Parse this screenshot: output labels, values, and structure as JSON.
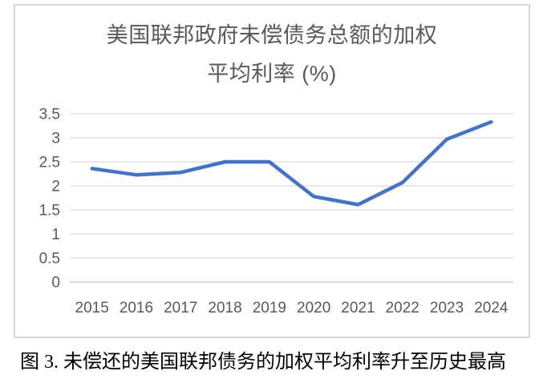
{
  "chart": {
    "title_line1": "美国联邦政府未偿债务总额的加权",
    "title_line2": "平均利率 (%)",
    "caption": "图 3. 未偿还的美国联邦债务的加权平均利率升至历史最高"
  },
  "chart_data": {
    "type": "line",
    "title": "美国联邦政府未偿债务总额的加权平均利率 (%)",
    "categories": [
      "2015",
      "2016",
      "2017",
      "2018",
      "2019",
      "2020",
      "2021",
      "2022",
      "2023",
      "2024"
    ],
    "values": [
      2.36,
      2.23,
      2.28,
      2.5,
      2.5,
      1.78,
      1.61,
      2.07,
      2.97,
      3.33
    ],
    "xlabel": "",
    "ylabel": "",
    "ylim": [
      0,
      3.5
    ],
    "ytick_step": 0.5,
    "yticks": [
      "0",
      "0.5",
      "1",
      "1.5",
      "2",
      "2.5",
      "3",
      "3.5"
    ],
    "grid": true,
    "legend": "none",
    "colors": {
      "line": "#4472C4",
      "gridline": "#D9D9D9",
      "axis_line": "#BFBFBF",
      "tick_text": "#595959",
      "title_text": "#595959",
      "chart_border": "#D9D9D9",
      "caption_text": "#000000",
      "background": "#FFFFFF"
    }
  }
}
